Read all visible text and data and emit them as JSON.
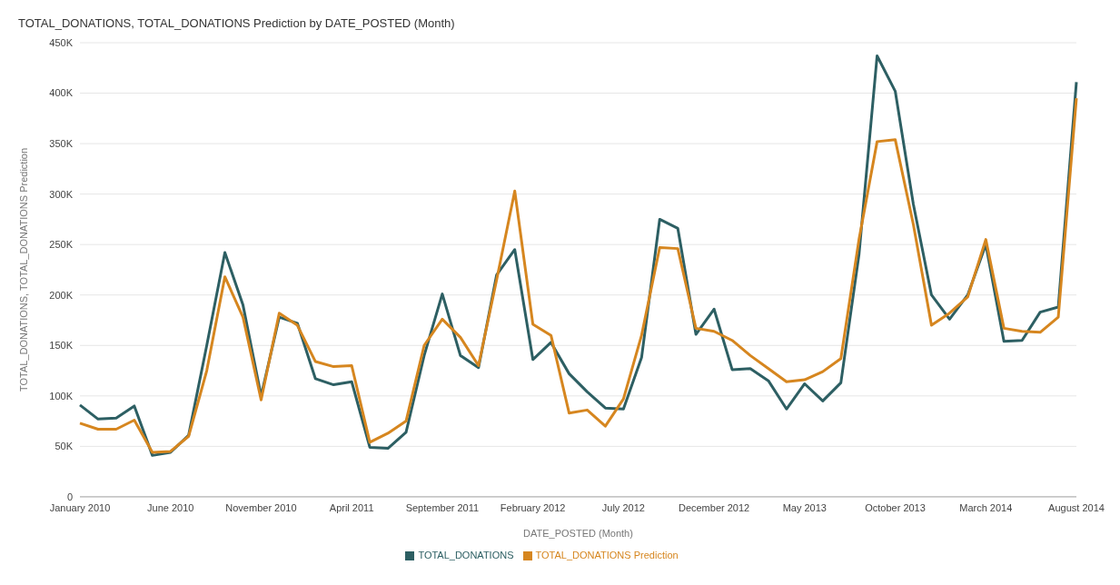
{
  "chart_data": {
    "type": "line",
    "title": "TOTAL_DONATIONS, TOTAL_DONATIONS Prediction by DATE_POSTED (Month)",
    "xlabel": "DATE_POSTED (Month)",
    "ylabel": "TOTAL_DONATIONS, TOTAL_DONATIONS Prediction",
    "categories": [
      "January 2010",
      null,
      null,
      null,
      null,
      "June 2010",
      null,
      null,
      null,
      null,
      "November 2010",
      null,
      null,
      null,
      null,
      "April 2011",
      null,
      null,
      null,
      null,
      "September 2011",
      null,
      null,
      null,
      null,
      "February 2012",
      null,
      null,
      null,
      null,
      "July 2012",
      null,
      null,
      null,
      null,
      "December 2012",
      null,
      null,
      null,
      null,
      "May 2013",
      null,
      null,
      null,
      null,
      "October 2013",
      null,
      null,
      null,
      null,
      "March 2014",
      null,
      null,
      null,
      null,
      "August 2014"
    ],
    "series": [
      {
        "name": "TOTAL_DONATIONS",
        "color": "#2d5f63",
        "values": [
          91000,
          77000,
          78000,
          90000,
          41000,
          44000,
          61000,
          150000,
          242000,
          190000,
          100000,
          178000,
          172000,
          117000,
          111000,
          114000,
          49000,
          48000,
          64000,
          140000,
          201000,
          140000,
          128000,
          220000,
          245000,
          136000,
          153000,
          122000,
          104000,
          88000,
          87000,
          138000,
          275000,
          266000,
          161000,
          186000,
          126000,
          127000,
          115000,
          87000,
          112000,
          95000,
          113000,
          240000,
          437000,
          402000,
          290000,
          200000,
          176000,
          200000,
          250000,
          154000,
          155000,
          183000,
          188000,
          411000
        ]
      },
      {
        "name": "TOTAL_DONATIONS Prediction",
        "color": "#d6861f",
        "values": [
          73000,
          67000,
          67000,
          76000,
          44000,
          45000,
          60000,
          125000,
          218000,
          178000,
          96000,
          182000,
          170000,
          134000,
          129000,
          130000,
          54000,
          63000,
          75000,
          150000,
          176000,
          158000,
          130000,
          215000,
          303000,
          171000,
          160000,
          83000,
          86000,
          70000,
          97000,
          160000,
          247000,
          246000,
          167000,
          164000,
          155000,
          140000,
          127000,
          114000,
          116000,
          124000,
          137000,
          255000,
          352000,
          354000,
          270000,
          170000,
          182000,
          198000,
          255000,
          167000,
          164000,
          163000,
          178000,
          395000
        ]
      }
    ],
    "ylim": [
      0,
      450000
    ],
    "yticks": [
      0,
      {
        "value": 50000,
        "label": "50K"
      },
      {
        "value": 100000,
        "label": "100K"
      },
      {
        "value": 150000,
        "label": "150K"
      },
      {
        "value": 200000,
        "label": "200K"
      },
      {
        "value": 250000,
        "label": "250K"
      },
      {
        "value": 300000,
        "label": "300K"
      },
      {
        "value": 350000,
        "label": "350K"
      },
      {
        "value": 400000,
        "label": "400K"
      },
      {
        "value": 450000,
        "label": "450K"
      }
    ],
    "grid": "y",
    "legend": "bottom",
    "marker": "none",
    "line_style": "solid"
  }
}
